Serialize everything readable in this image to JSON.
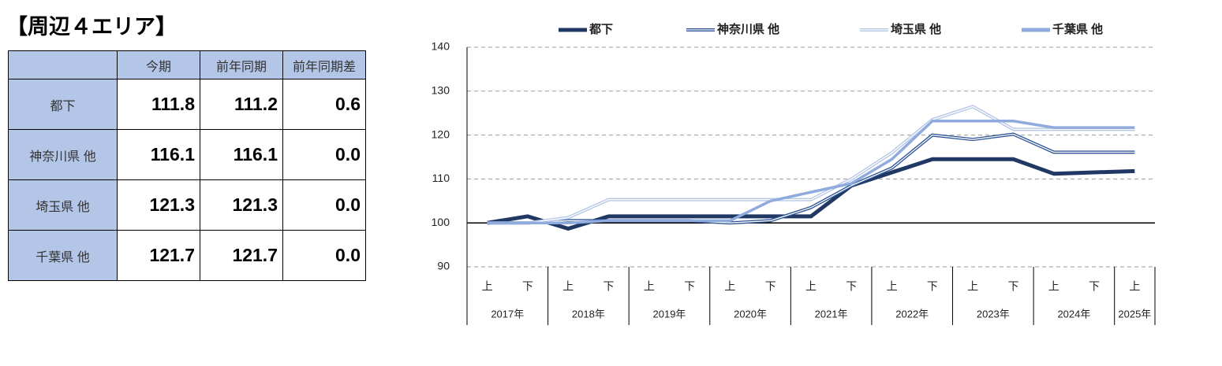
{
  "title": "【周辺４エリア】",
  "table": {
    "header": [
      "今期",
      "前年同期",
      "前年同期差"
    ],
    "rows": [
      [
        "都下",
        "111.8",
        "111.2",
        "0.6"
      ],
      [
        "神奈川県 他",
        "116.1",
        "116.1",
        "0.0"
      ],
      [
        "埼玉県 他",
        "121.3",
        "121.3",
        "0.0"
      ],
      [
        "千葉県 他",
        "121.7",
        "121.7",
        "0.0"
      ]
    ]
  },
  "chart_data": {
    "type": "line",
    "categories": [
      "上",
      "下",
      "上",
      "下",
      "上",
      "下",
      "上",
      "下",
      "上",
      "下",
      "上",
      "下",
      "上",
      "下",
      "上",
      "下",
      "上"
    ],
    "groups": [
      "2017年",
      "2018年",
      "2019年",
      "2020年",
      "2021年",
      "2022年",
      "2023年",
      "2024年",
      "2025年"
    ],
    "ylim": [
      90,
      140
    ],
    "yticks": [
      90,
      100,
      110,
      120,
      130,
      140
    ],
    "grid": true,
    "baseline": 100,
    "legend": "top",
    "series": [
      {
        "name": "都下",
        "color": "#203864",
        "style": "solid",
        "values": [
          100,
          101.5,
          98.7,
          101.5,
          101.5,
          101.5,
          101.5,
          101.5,
          101.5,
          108.5,
          111.5,
          114.5,
          114.5,
          114.5,
          111.2,
          111.5,
          111.8
        ]
      },
      {
        "name": "神奈川県 他",
        "color": "#2f5597",
        "style": "double",
        "values": [
          100,
          100,
          100.5,
          100.5,
          100.5,
          100.5,
          100,
          100.5,
          103.5,
          108.5,
          112.5,
          120,
          119,
          120.2,
          116.1,
          116.1,
          116.1
        ]
      },
      {
        "name": "埼玉県 他",
        "color": "#b4c7e7",
        "style": "double",
        "values": [
          100,
          100,
          101.2,
          105.3,
          105.3,
          105.3,
          105.3,
          105.3,
          105.3,
          110,
          116,
          123.5,
          126.5,
          121.3,
          121.3,
          121.3,
          121.3
        ]
      },
      {
        "name": "千葉県 他",
        "color": "#8faadc",
        "style": "solid",
        "values": [
          100,
          100,
          100,
          100.5,
          100.5,
          100.5,
          100.5,
          105,
          107,
          109,
          114.5,
          123.2,
          123.2,
          123.2,
          121.7,
          121.7,
          121.7
        ]
      }
    ]
  }
}
